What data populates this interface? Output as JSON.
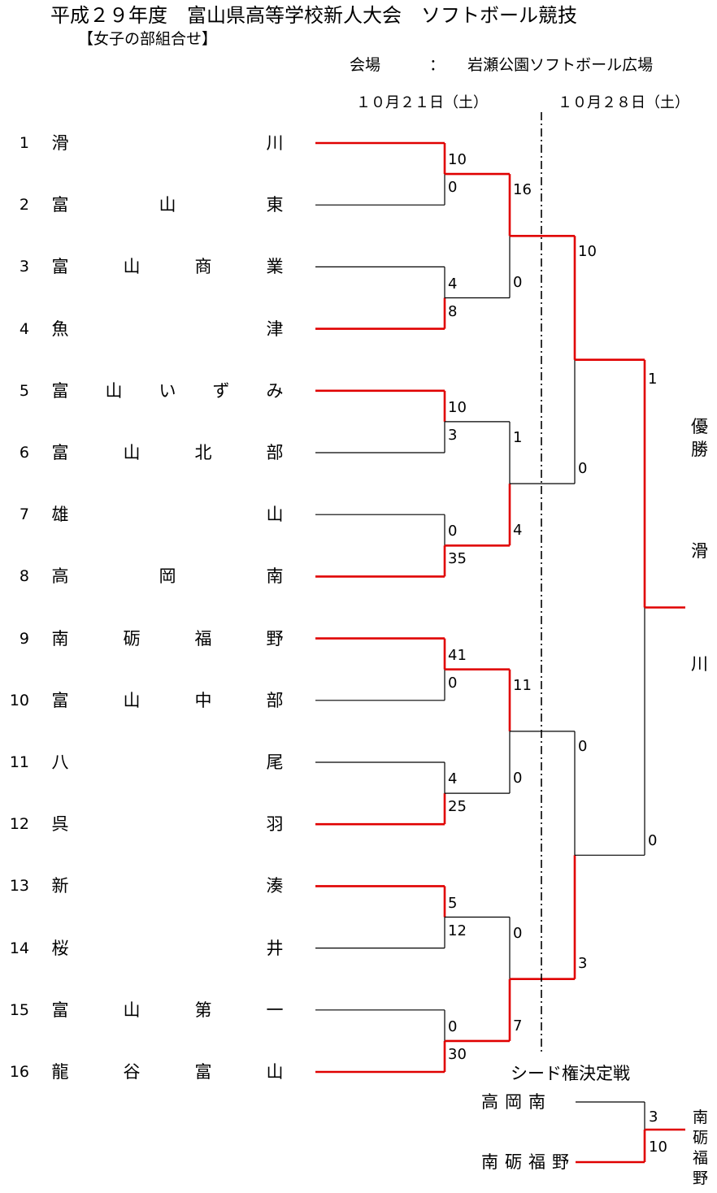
{
  "header": {
    "title": "平成２９年度　富山県高等学校新人大会　ソフトボール競技",
    "subtitle": "【女子の部組合せ】",
    "venue_label": "会場",
    "venue_colon": "：",
    "venue_name": "岩瀬公園ソフトボール広場",
    "date_day1": "１０月２１日（土）",
    "date_day2": "１０月２８日（土）"
  },
  "teams": [
    {
      "no": "1",
      "chars": [
        "滑",
        "",
        "",
        "川"
      ]
    },
    {
      "no": "2",
      "chars": [
        "富",
        "山",
        "",
        "東"
      ]
    },
    {
      "no": "3",
      "chars": [
        "富",
        "山",
        "商",
        "業"
      ]
    },
    {
      "no": "4",
      "chars": [
        "魚",
        "",
        "",
        "津"
      ]
    },
    {
      "no": "5",
      "chars": [
        "富",
        "山",
        "い",
        "ず",
        "み"
      ]
    },
    {
      "no": "6",
      "chars": [
        "富",
        "山",
        "北",
        "部"
      ]
    },
    {
      "no": "7",
      "chars": [
        "雄",
        "",
        "",
        "山"
      ]
    },
    {
      "no": "8",
      "chars": [
        "高",
        "岡",
        "",
        "南"
      ]
    },
    {
      "no": "9",
      "chars": [
        "南",
        "砺",
        "福",
        "野"
      ]
    },
    {
      "no": "10",
      "chars": [
        "富",
        "山",
        "中",
        "部"
      ]
    },
    {
      "no": "11",
      "chars": [
        "八",
        "",
        "",
        "尾"
      ]
    },
    {
      "no": "12",
      "chars": [
        "呉",
        "",
        "",
        "羽"
      ]
    },
    {
      "no": "13",
      "chars": [
        "新",
        "",
        "",
        "湊"
      ]
    },
    {
      "no": "14",
      "chars": [
        "桜",
        "",
        "",
        "井"
      ]
    },
    {
      "no": "15",
      "chars": [
        "富",
        "山",
        "第",
        "一"
      ]
    },
    {
      "no": "16",
      "chars": [
        "龍",
        "谷",
        "富",
        "山"
      ]
    }
  ],
  "scores": {
    "r1": [
      "10",
      "0",
      "4",
      "8",
      "10",
      "3",
      "0",
      "35",
      "41",
      "0",
      "4",
      "25",
      "5",
      "12",
      "0",
      "30"
    ],
    "r2": [
      "16",
      "0",
      "1",
      "4",
      "11",
      "0",
      "0",
      "7"
    ],
    "r3": [
      "10",
      "0",
      "0",
      "3"
    ],
    "final": [
      "1",
      "0"
    ]
  },
  "champion": {
    "label": [
      "優",
      "勝"
    ],
    "team": [
      "滑",
      "川"
    ]
  },
  "seed_match": {
    "title": "シード権決定戦",
    "team_a": "高岡南",
    "team_b": "南砺福野",
    "score_a": "3",
    "score_b": "10",
    "winner": [
      "南",
      "砺",
      "福",
      "野"
    ]
  },
  "colors": {
    "win_line": "#e00000",
    "lose_line": "#000000"
  }
}
